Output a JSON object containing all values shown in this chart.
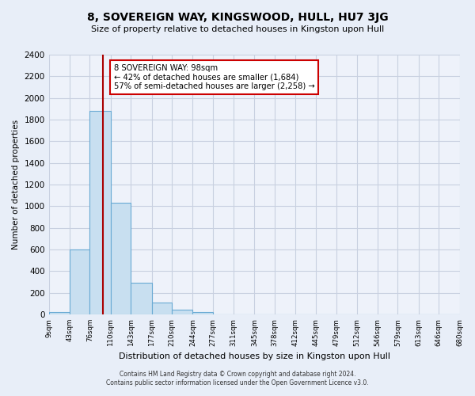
{
  "title": "8, SOVEREIGN WAY, KINGSWOOD, HULL, HU7 3JG",
  "subtitle": "Size of property relative to detached houses in Kingston upon Hull",
  "xlabel": "Distribution of detached houses by size in Kingston upon Hull",
  "ylabel": "Number of detached properties",
  "bar_color": "#c8dff0",
  "bar_edge_color": "#6aaad4",
  "bin_edges": [
    9,
    43,
    76,
    110,
    143,
    177,
    210,
    244,
    277,
    311,
    345,
    378,
    412,
    445,
    479,
    512,
    546,
    579,
    613,
    646,
    680
  ],
  "bin_labels": [
    "9sqm",
    "43sqm",
    "76sqm",
    "110sqm",
    "143sqm",
    "177sqm",
    "210sqm",
    "244sqm",
    "277sqm",
    "311sqm",
    "345sqm",
    "378sqm",
    "412sqm",
    "445sqm",
    "479sqm",
    "512sqm",
    "546sqm",
    "579sqm",
    "613sqm",
    "646sqm",
    "680sqm"
  ],
  "bar_heights": [
    20,
    600,
    1880,
    1035,
    290,
    110,
    45,
    20,
    0,
    0,
    0,
    0,
    0,
    0,
    0,
    0,
    0,
    0,
    0,
    0
  ],
  "property_size": 98,
  "vline_color": "#aa0000",
  "annotation_line1": "8 SOVEREIGN WAY: 98sqm",
  "annotation_line2": "← 42% of detached houses are smaller (1,684)",
  "annotation_line3": "57% of semi-detached houses are larger (2,258) →",
  "annotation_box_color": "white",
  "annotation_box_edge_color": "#cc0000",
  "ylim": [
    0,
    2400
  ],
  "yticks": [
    0,
    200,
    400,
    600,
    800,
    1000,
    1200,
    1400,
    1600,
    1800,
    2000,
    2200,
    2400
  ],
  "footnote_line1": "Contains HM Land Registry data © Crown copyright and database right 2024.",
  "footnote_line2": "Contains public sector information licensed under the Open Government Licence v3.0.",
  "bg_color": "#e8eef8",
  "plot_bg_color": "#eef2fa",
  "grid_color": "#c8d0e0"
}
